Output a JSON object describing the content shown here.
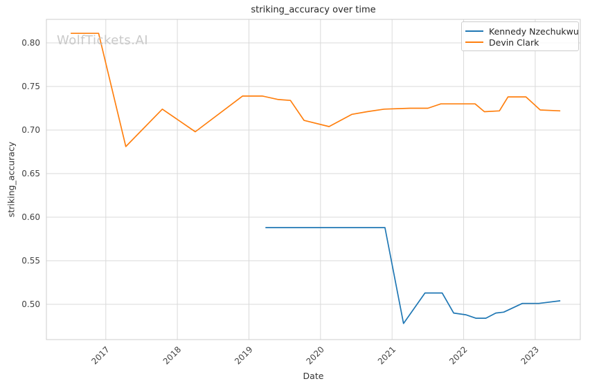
{
  "watermark": "WolfTickets.AI",
  "chart_data": {
    "type": "line",
    "title": "striking_accuracy over time",
    "xlabel": "Date",
    "ylabel": "striking_accuracy",
    "x_unit": "decimal_year",
    "grid": true,
    "legend_position": "upper right",
    "xlim": [
      2016.17,
      2023.63
    ],
    "ylim": [
      0.4595,
      0.827
    ],
    "xticks": [
      2017,
      2018,
      2019,
      2020,
      2021,
      2022,
      2023
    ],
    "yticks": [
      0.5,
      0.55,
      0.6,
      0.65,
      0.7,
      0.75,
      0.8
    ],
    "series": [
      {
        "name": "Kennedy Nzechukwu",
        "color": "#1f77b4",
        "points": [
          [
            2019.23,
            0.588
          ],
          [
            2020.9,
            0.588
          ],
          [
            2021.16,
            0.478
          ],
          [
            2021.46,
            0.513
          ],
          [
            2021.7,
            0.513
          ],
          [
            2021.86,
            0.49
          ],
          [
            2022.03,
            0.488
          ],
          [
            2022.17,
            0.484
          ],
          [
            2022.31,
            0.484
          ],
          [
            2022.45,
            0.49
          ],
          [
            2022.56,
            0.491
          ],
          [
            2022.82,
            0.501
          ],
          [
            2023.05,
            0.501
          ],
          [
            2023.35,
            0.504
          ]
        ]
      },
      {
        "name": "Devin Clark",
        "color": "#ff7f0e",
        "points": [
          [
            2016.51,
            0.811
          ],
          [
            2016.9,
            0.811
          ],
          [
            2017.28,
            0.681
          ],
          [
            2017.79,
            0.724
          ],
          [
            2018.25,
            0.698
          ],
          [
            2018.91,
            0.739
          ],
          [
            2019.19,
            0.739
          ],
          [
            2019.41,
            0.735
          ],
          [
            2019.58,
            0.734
          ],
          [
            2019.77,
            0.711
          ],
          [
            2020.12,
            0.704
          ],
          [
            2020.44,
            0.718
          ],
          [
            2020.65,
            0.721
          ],
          [
            2020.89,
            0.724
          ],
          [
            2021.25,
            0.725
          ],
          [
            2021.5,
            0.725
          ],
          [
            2021.68,
            0.73
          ],
          [
            2022.0,
            0.73
          ],
          [
            2022.16,
            0.73
          ],
          [
            2022.29,
            0.721
          ],
          [
            2022.5,
            0.722
          ],
          [
            2022.62,
            0.738
          ],
          [
            2022.87,
            0.738
          ],
          [
            2023.07,
            0.723
          ],
          [
            2023.35,
            0.722
          ]
        ]
      }
    ]
  },
  "style": {
    "grid_color": "#dadada",
    "border_color": "#cccccc",
    "watermark_color": "#c9c9c9",
    "line_width": 1.7
  }
}
